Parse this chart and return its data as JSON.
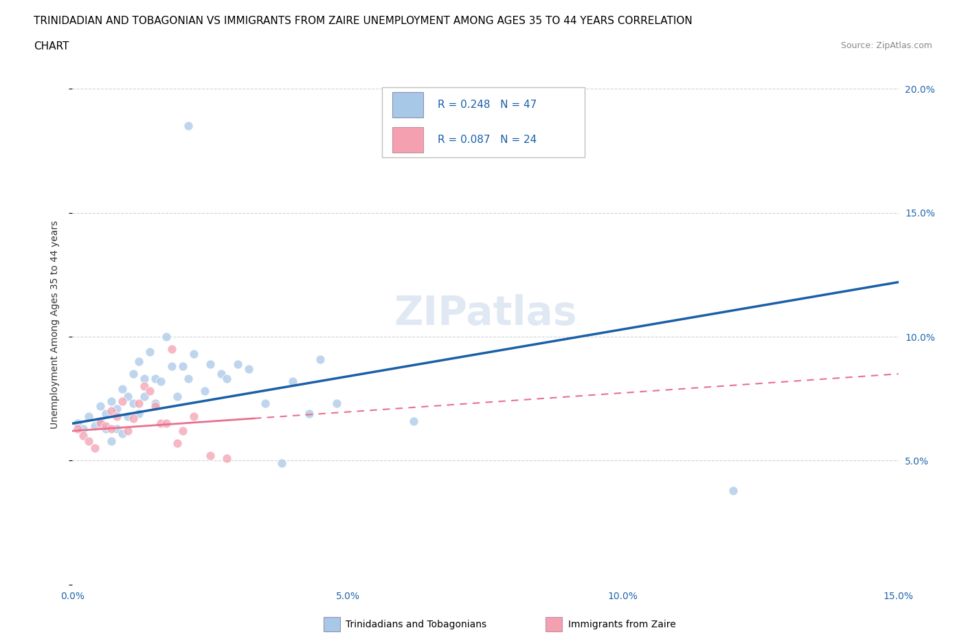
{
  "title_line1": "TRINIDADIAN AND TOBAGONIAN VS IMMIGRANTS FROM ZAIRE UNEMPLOYMENT AMONG AGES 35 TO 44 YEARS CORRELATION",
  "title_line2": "CHART",
  "source": "Source: ZipAtlas.com",
  "ylabel": "Unemployment Among Ages 35 to 44 years",
  "xlim": [
    0.0,
    0.15
  ],
  "ylim": [
    0.0,
    0.21
  ],
  "xticks": [
    0.0,
    0.05,
    0.1,
    0.15
  ],
  "yticks": [
    0.0,
    0.05,
    0.1,
    0.15,
    0.2
  ],
  "ytick_labels": [
    "",
    "5.0%",
    "10.0%",
    "15.0%",
    "20.0%"
  ],
  "xtick_labels": [
    "0.0%",
    "5.0%",
    "10.0%",
    "15.0%"
  ],
  "R_blue": 0.248,
  "N_blue": 47,
  "R_pink": 0.087,
  "N_pink": 24,
  "blue_color": "#a8c8e8",
  "pink_color": "#f4a0b0",
  "trend_blue_color": "#1a5fa8",
  "trend_pink_color": "#e87090",
  "blue_scatter_x": [
    0.001,
    0.002,
    0.003,
    0.004,
    0.005,
    0.005,
    0.006,
    0.006,
    0.007,
    0.007,
    0.008,
    0.008,
    0.009,
    0.009,
    0.01,
    0.01,
    0.011,
    0.011,
    0.012,
    0.012,
    0.013,
    0.013,
    0.014,
    0.015,
    0.015,
    0.016,
    0.017,
    0.018,
    0.019,
    0.02,
    0.021,
    0.022,
    0.024,
    0.025,
    0.027,
    0.028,
    0.03,
    0.032,
    0.035,
    0.038,
    0.04,
    0.043,
    0.045,
    0.048,
    0.062,
    0.021,
    0.12
  ],
  "blue_scatter_y": [
    0.065,
    0.063,
    0.068,
    0.064,
    0.066,
    0.072,
    0.063,
    0.069,
    0.058,
    0.074,
    0.071,
    0.063,
    0.061,
    0.079,
    0.068,
    0.076,
    0.073,
    0.085,
    0.09,
    0.069,
    0.083,
    0.076,
    0.094,
    0.083,
    0.073,
    0.082,
    0.1,
    0.088,
    0.076,
    0.088,
    0.083,
    0.093,
    0.078,
    0.089,
    0.085,
    0.083,
    0.089,
    0.087,
    0.073,
    0.049,
    0.082,
    0.069,
    0.091,
    0.073,
    0.066,
    0.185,
    0.038
  ],
  "pink_scatter_x": [
    0.001,
    0.002,
    0.003,
    0.004,
    0.005,
    0.006,
    0.007,
    0.007,
    0.008,
    0.009,
    0.01,
    0.011,
    0.012,
    0.013,
    0.014,
    0.015,
    0.016,
    0.017,
    0.018,
    0.019,
    0.02,
    0.022,
    0.025,
    0.028
  ],
  "pink_scatter_y": [
    0.063,
    0.06,
    0.058,
    0.055,
    0.065,
    0.064,
    0.07,
    0.063,
    0.068,
    0.074,
    0.062,
    0.067,
    0.073,
    0.08,
    0.078,
    0.072,
    0.065,
    0.065,
    0.095,
    0.057,
    0.062,
    0.068,
    0.052,
    0.051
  ],
  "blue_trend_x0": 0.0,
  "blue_trend_y0": 0.065,
  "blue_trend_x1": 0.15,
  "blue_trend_y1": 0.122,
  "pink_trend_x0": 0.0,
  "pink_trend_y0": 0.062,
  "pink_trend_x1": 0.15,
  "pink_trend_y1": 0.085,
  "pink_solid_xend": 0.033,
  "watermark": "ZIPatlas",
  "background_color": "#ffffff",
  "grid_color": "#c8c8c8"
}
